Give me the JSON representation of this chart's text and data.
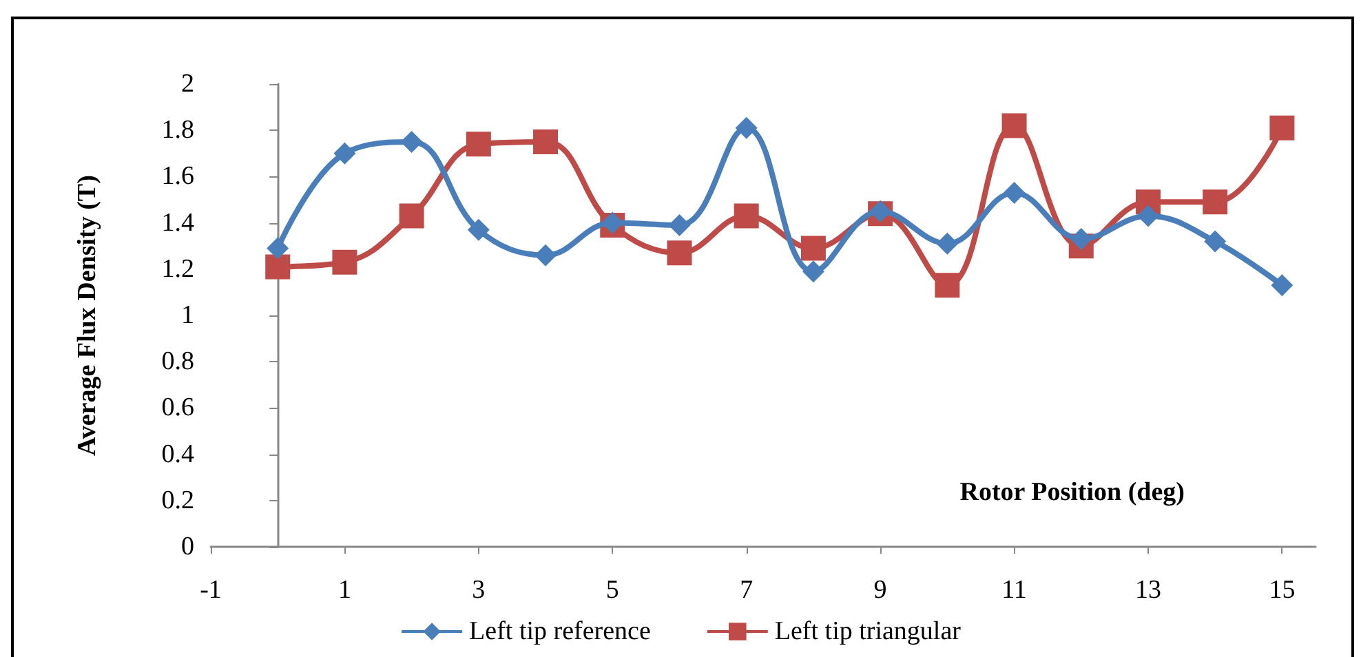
{
  "chart_data": {
    "type": "line",
    "xlabel": "Rotor Position (deg)",
    "ylabel": "Average Flux Density (T)",
    "x": [
      0,
      1,
      2,
      3,
      4,
      5,
      6,
      7,
      8,
      9,
      10,
      11,
      12,
      13,
      14,
      15
    ],
    "xlim": [
      -1,
      15.5
    ],
    "xticks": [
      -1,
      1,
      3,
      5,
      7,
      9,
      11,
      13,
      15
    ],
    "ylim": [
      0,
      2
    ],
    "yticks": [
      0,
      0.2,
      0.4,
      0.6,
      0.8,
      1,
      1.2,
      1.4,
      1.6,
      1.8,
      2
    ],
    "grid": false,
    "legend": "bottom",
    "series": [
      {
        "name": "Left tip reference",
        "color": "#4a7ebb",
        "marker": "diamond",
        "values": [
          1.29,
          1.7,
          1.75,
          1.37,
          1.26,
          1.4,
          1.39,
          1.81,
          1.19,
          1.45,
          1.31,
          1.53,
          1.33,
          1.43,
          1.32,
          1.13
        ]
      },
      {
        "name": "Left tip triangular",
        "color": "#be4b48",
        "marker": "square",
        "values": [
          1.21,
          1.23,
          1.43,
          1.74,
          1.75,
          1.39,
          1.27,
          1.43,
          1.29,
          1.44,
          1.13,
          1.82,
          1.3,
          1.49,
          1.49,
          1.81
        ]
      }
    ]
  }
}
